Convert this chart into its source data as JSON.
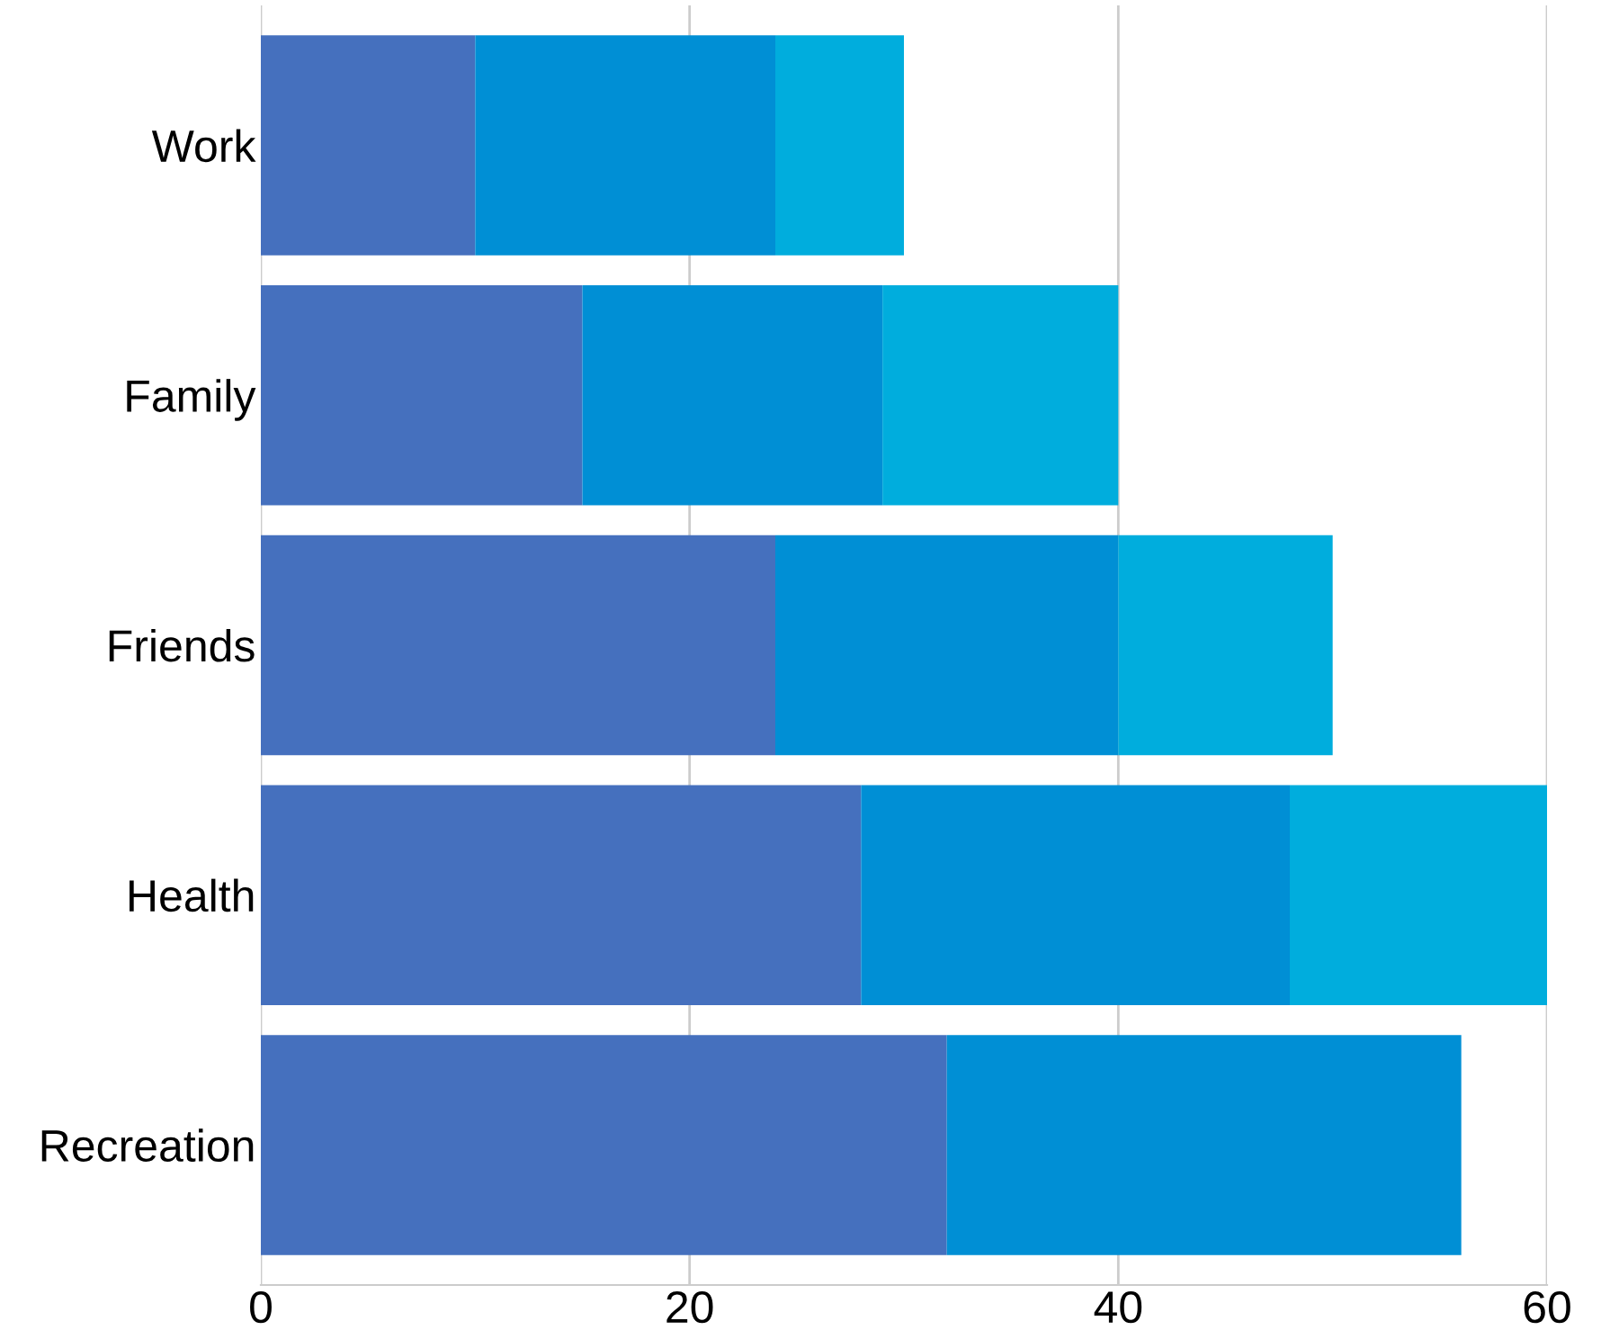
{
  "chart_data": {
    "type": "bar",
    "orientation": "horizontal",
    "stacked": true,
    "categories": [
      "Work",
      "Family",
      "Friends",
      "Health",
      "Recreation"
    ],
    "series": [
      {
        "color": "#4570be",
        "values": [
          10,
          15,
          24,
          28,
          32
        ]
      },
      {
        "color": "#008fd5",
        "values": [
          14,
          14,
          16,
          20,
          24
        ]
      },
      {
        "color": "#00addd",
        "values": [
          6,
          11,
          10,
          12,
          null
        ]
      }
    ],
    "xlim": [
      0,
      60
    ],
    "xticks": [
      0,
      20,
      40,
      60
    ],
    "grid": "x",
    "legend": false
  }
}
